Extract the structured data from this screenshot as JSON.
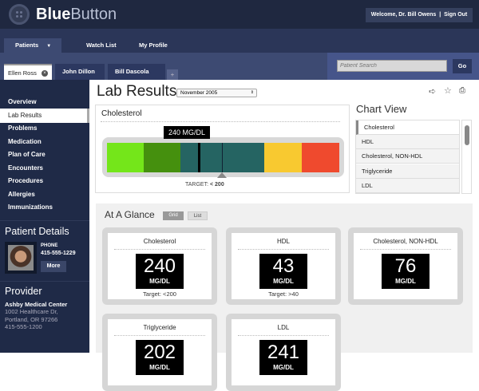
{
  "app": {
    "brand_bold": "Blue",
    "brand_light": "Button",
    "welcome": "Welcome, Dr. Bill Owens",
    "separator": "|",
    "sign_out": "Sign Out"
  },
  "nav": {
    "patients": "Patients",
    "watch_list": "Watch List",
    "my_profile": "My Profile"
  },
  "patient_tabs": [
    {
      "label": "Ellen Ross",
      "active": true
    },
    {
      "label": "John Dillon"
    },
    {
      "label": "Bill Dascola"
    }
  ],
  "add_tab": "+",
  "search": {
    "placeholder": "Patient Search",
    "go": "Go"
  },
  "sidebar": {
    "items": [
      "Overview",
      "Lab Results",
      "Problems",
      "Medication",
      "Plan of Care",
      "Encounters",
      "Procedures",
      "Allergies",
      "Immunizations"
    ],
    "active": "Lab Results"
  },
  "patient_details": {
    "title": "Patient Details",
    "phone_label": "PHONE",
    "phone": "415-555-1229",
    "more": "More"
  },
  "provider": {
    "title": "Provider",
    "name": "Ashby Medical Center",
    "address1": "1002 Healthcare Dr,",
    "address2": "Portland, OR 97266",
    "phone": "415-555-1200"
  },
  "page": {
    "title": "Lab Results",
    "date_select": "November 2005"
  },
  "gauge": {
    "title": "Cholesterol",
    "value_label": "240 MG/DL",
    "target_label": "TARGET:",
    "target_value": "< 200",
    "colors": [
      "#74e61a",
      "#45900e",
      "#256462",
      "#f8c930",
      "#ef4a2e"
    ]
  },
  "chart_view": {
    "title": "Chart View",
    "items": [
      "Cholesterol",
      "HDL",
      "Cholesterol, NON-HDL",
      "Triglyceride",
      "LDL"
    ],
    "selected": "Cholesterol"
  },
  "glance": {
    "title": "At A Glance",
    "grid": "Grid",
    "list": "List",
    "cards": [
      {
        "name": "Cholesterol",
        "value": "240",
        "unit": "MG/DL",
        "target": "Target: <200"
      },
      {
        "name": "HDL",
        "value": "43",
        "unit": "MG/DL",
        "target": "Target: >40"
      },
      {
        "name": "Cholesterol, NON-HDL",
        "value": "76",
        "unit": "MG/DL"
      },
      {
        "name": "Triglyceride",
        "value": "202",
        "unit": "MG/DL"
      },
      {
        "name": "LDL",
        "value": "241",
        "unit": "MG/DL"
      }
    ]
  }
}
